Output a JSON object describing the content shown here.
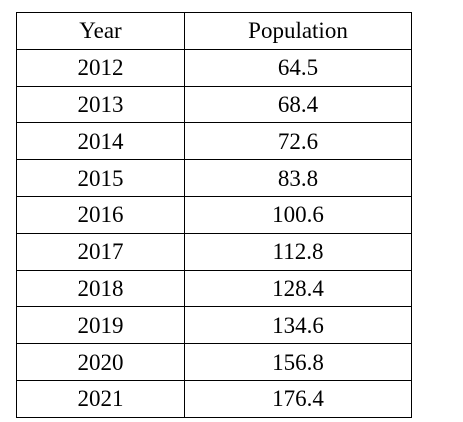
{
  "table": {
    "headers": [
      "Year",
      "Population"
    ],
    "rows": [
      [
        "2012",
        "64.5"
      ],
      [
        "2013",
        "68.4"
      ],
      [
        "2014",
        "72.6"
      ],
      [
        "2015",
        "83.8"
      ],
      [
        "2016",
        "100.6"
      ],
      [
        "2017",
        "112.8"
      ],
      [
        "2018",
        "128.4"
      ],
      [
        "2019",
        "134.6"
      ],
      [
        "2020",
        "156.8"
      ],
      [
        "2021",
        "176.4"
      ]
    ]
  }
}
